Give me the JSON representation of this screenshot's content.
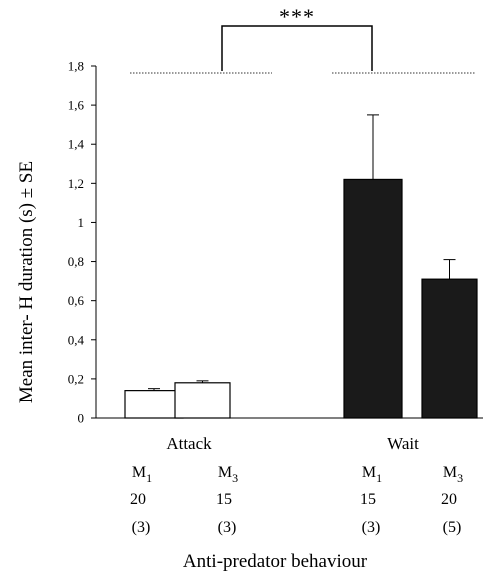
{
  "chart_data": {
    "type": "bar",
    "ylabel": "Mean inter- H duration (s) ± SE",
    "xlabel": "Anti-predator behaviour",
    "ylim": [
      0,
      1.8
    ],
    "yticks": [
      "0",
      "0,2",
      "0,4",
      "0,6",
      "0,8",
      "1",
      "1,2",
      "1,4",
      "1,6",
      "1,8"
    ],
    "grid": false,
    "significance": "***",
    "groups": [
      {
        "label": "Attack",
        "bars": [
          {
            "male": "M",
            "sub": "1",
            "n": "20",
            "n_paren": "(3)",
            "value": 0.14,
            "se": 0.01,
            "color": "#ffffff"
          },
          {
            "male": "M",
            "sub": "3",
            "n": "15",
            "n_paren": "(3)",
            "value": 0.18,
            "se": 0.01,
            "color": "#ffffff"
          }
        ]
      },
      {
        "label": "Wait",
        "bars": [
          {
            "male": "M",
            "sub": "1",
            "n": "15",
            "n_paren": "(3)",
            "value": 1.22,
            "se": 0.33,
            "color": "#1a1a1a"
          },
          {
            "male": "M",
            "sub": "3",
            "n": "20",
            "n_paren": "(5)",
            "value": 0.71,
            "se": 0.1,
            "color": "#1a1a1a"
          }
        ]
      }
    ]
  }
}
